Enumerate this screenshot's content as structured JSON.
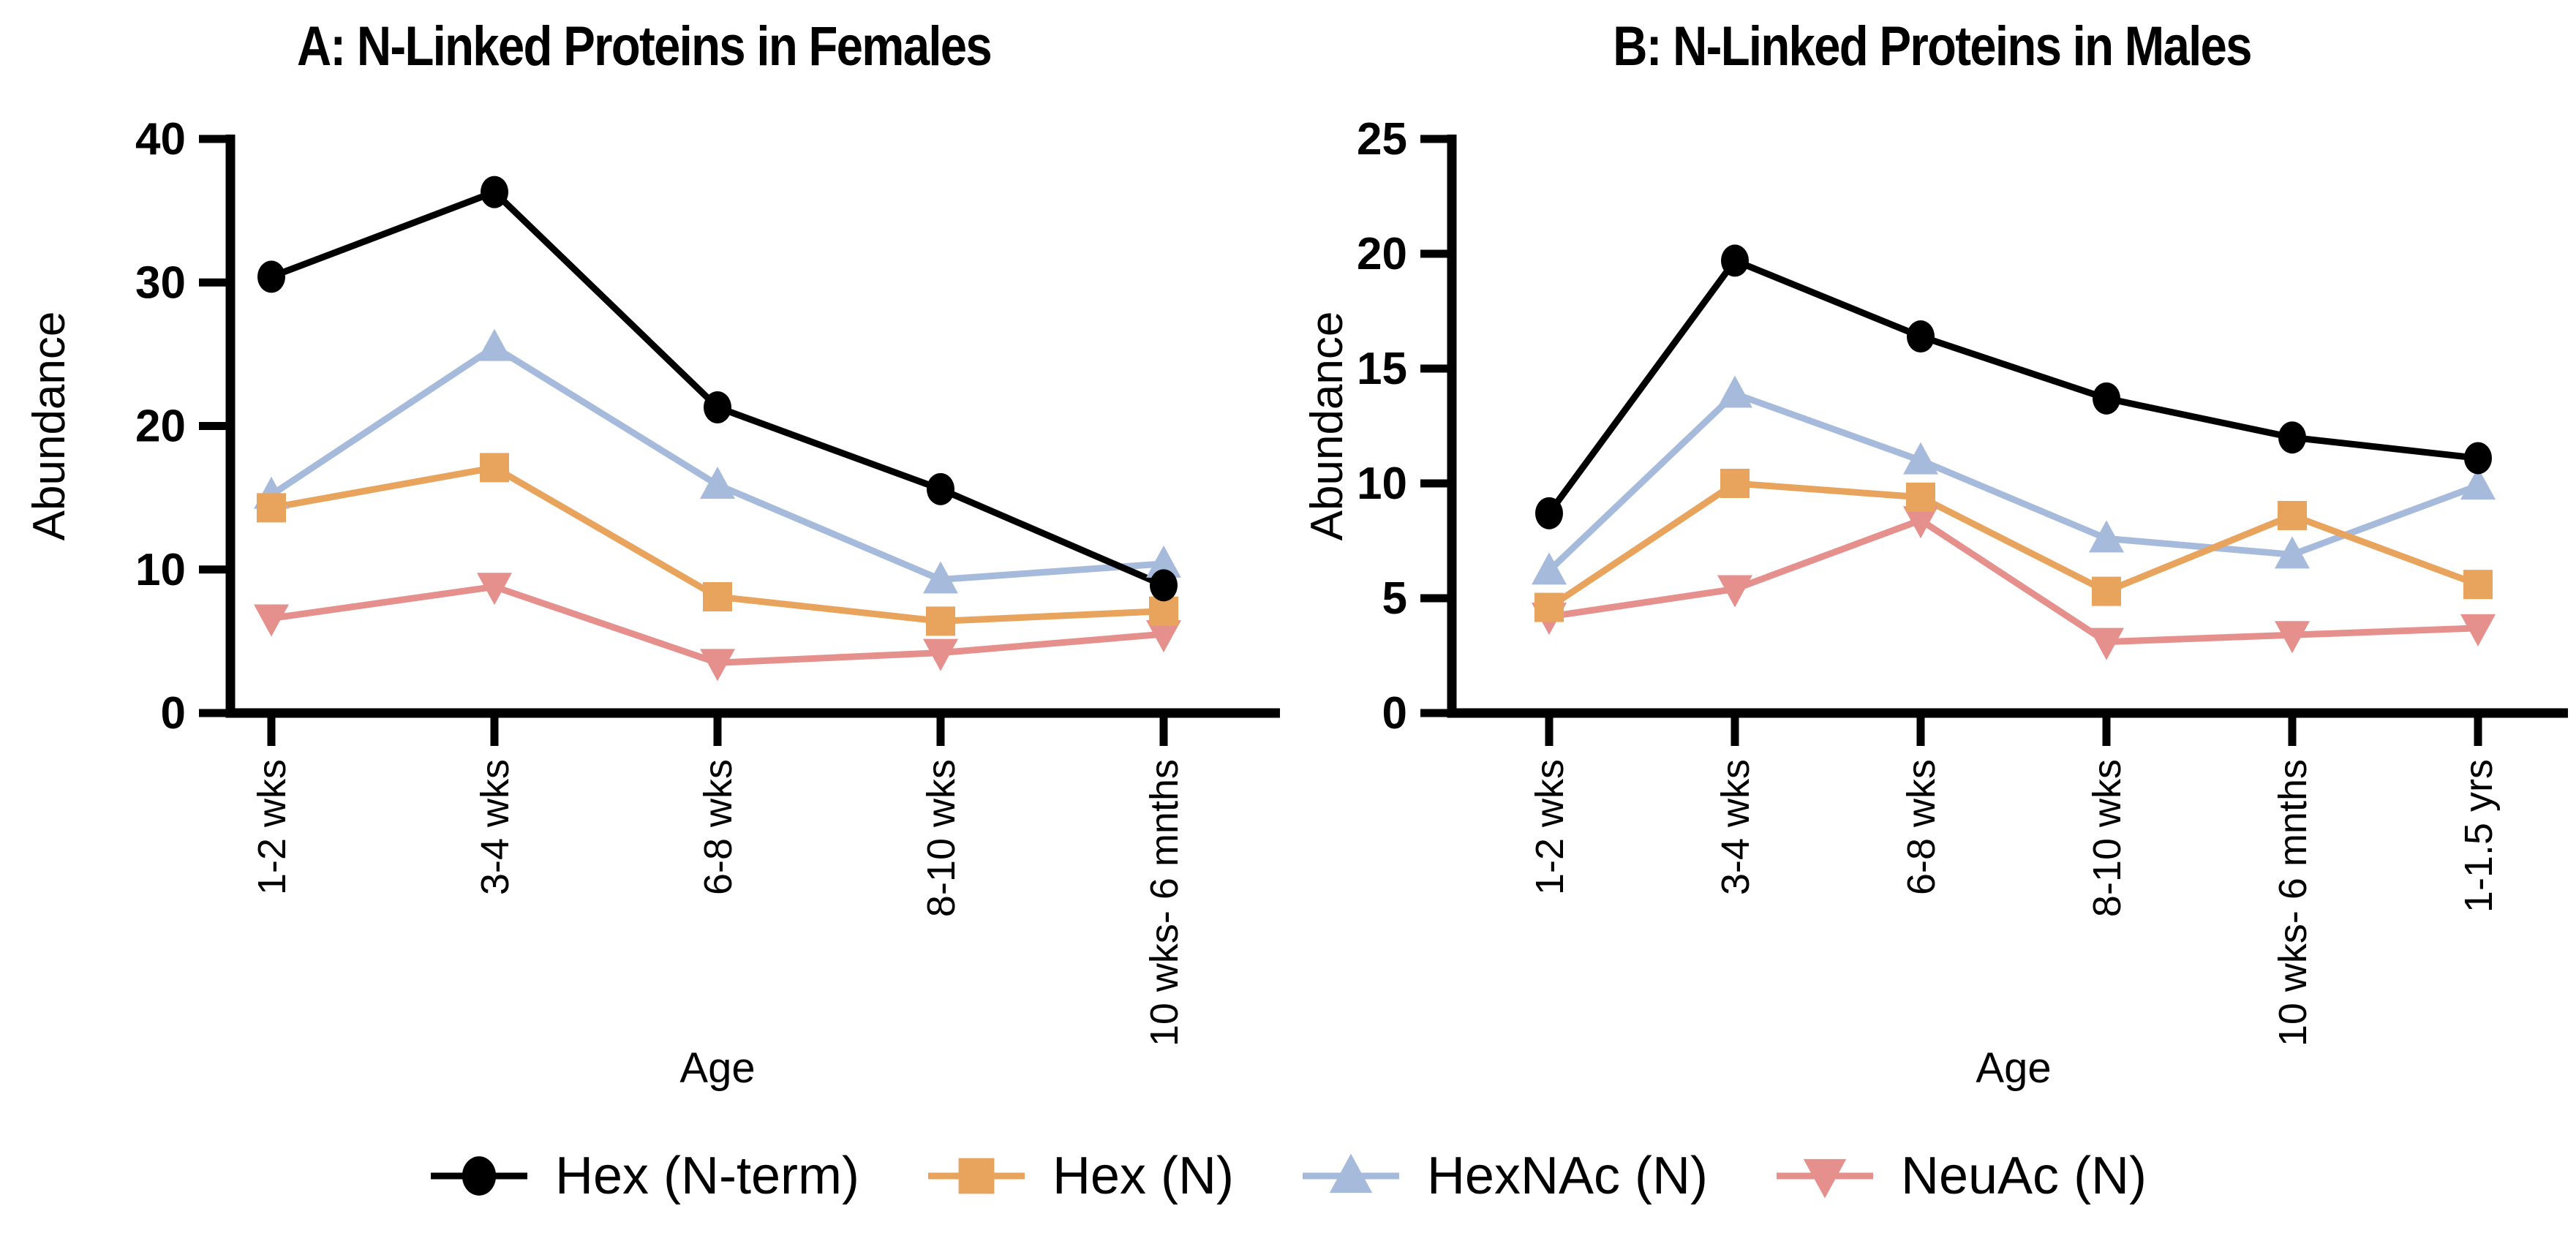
{
  "page": {
    "background": "#FFFFFF"
  },
  "colors": {
    "hex_nterm": "#000000",
    "hex_n": "#E8A35D",
    "hexnac_n": "#A6BBDB",
    "neuac_n": "#E5908C"
  },
  "legend": {
    "items": [
      {
        "label": "Hex (N-term)",
        "marker": "circle",
        "color": "#000000"
      },
      {
        "label": "Hex (N)",
        "marker": "square",
        "color": "#E8A35D"
      },
      {
        "label": "HexNAc (N)",
        "marker": "triangle-up",
        "color": "#A6BBDB"
      },
      {
        "label": "NeuAc (N)",
        "marker": "triangle-down",
        "color": "#E5908C"
      }
    ]
  },
  "chart_data": [
    {
      "type": "line",
      "panel": "A",
      "title": "A: N-Linked Proteins in Females",
      "xlabel": "Age",
      "ylabel": "Abundance",
      "ylim": [
        0,
        40
      ],
      "ytick_step": 10,
      "yticks": [
        0,
        10,
        20,
        30,
        40
      ],
      "grid": false,
      "legend_position": "bottom",
      "categories": [
        "1-2 wks",
        "3-4 wks",
        "6-8 wks",
        "8-10 wks",
        "10 wks- 6 mnths"
      ],
      "series": [
        {
          "name": "Hex (N-term)",
          "marker": "circle",
          "color": "#000000",
          "values": [
            30.4,
            36.3,
            21.3,
            15.6,
            8.9
          ]
        },
        {
          "name": "Hex (N)",
          "marker": "square",
          "color": "#E8A35D",
          "values": [
            14.3,
            17.1,
            8.1,
            6.4,
            7.1
          ]
        },
        {
          "name": "HexNAc (N)",
          "marker": "triangle-up",
          "color": "#A6BBDB",
          "values": [
            15.2,
            25.5,
            15.9,
            9.3,
            10.4
          ]
        },
        {
          "name": "NeuAc (N)",
          "marker": "triangle-down",
          "color": "#E5908C",
          "values": [
            6.6,
            8.8,
            3.5,
            4.2,
            5.5
          ]
        }
      ]
    },
    {
      "type": "line",
      "panel": "B",
      "title": "B: N-Linked Proteins in Males",
      "xlabel": "Age",
      "ylabel": "Abundance",
      "ylim": [
        0,
        25
      ],
      "ytick_step": 5,
      "yticks": [
        0,
        5,
        10,
        15,
        20,
        25
      ],
      "grid": false,
      "legend_position": "bottom",
      "categories": [
        "1-2 wks",
        "3-4 wks",
        "6-8 wks",
        "8-10 wks",
        "10 wks- 6 mnths",
        "1-1.5 yrs"
      ],
      "series": [
        {
          "name": "Hex (N-term)",
          "marker": "circle",
          "color": "#000000",
          "values": [
            8.7,
            19.7,
            16.4,
            13.7,
            12.0,
            11.1
          ]
        },
        {
          "name": "Hex (N)",
          "marker": "square",
          "color": "#E8A35D",
          "values": [
            4.6,
            10.0,
            9.4,
            5.3,
            8.6,
            5.6
          ]
        },
        {
          "name": "HexNAc (N)",
          "marker": "triangle-up",
          "color": "#A6BBDB",
          "values": [
            6.2,
            13.9,
            11.0,
            7.6,
            6.9,
            9.9
          ]
        },
        {
          "name": "NeuAc (N)",
          "marker": "triangle-down",
          "color": "#E5908C",
          "values": [
            4.2,
            5.4,
            8.4,
            3.1,
            3.4,
            3.7
          ]
        }
      ]
    }
  ]
}
